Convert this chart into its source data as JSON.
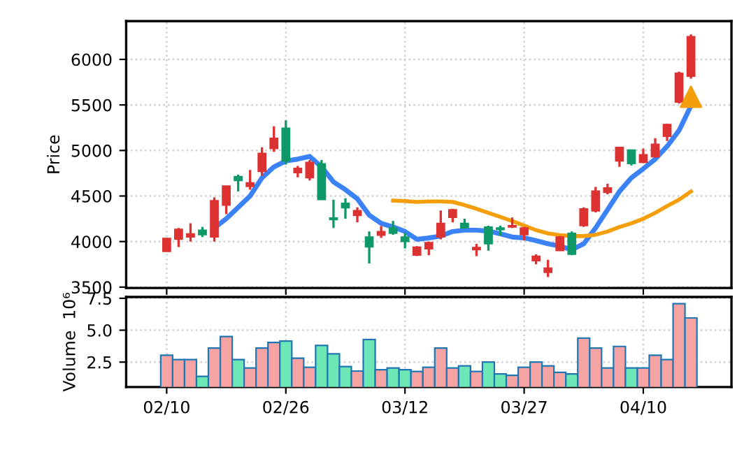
{
  "chart_data": [
    {
      "type": "candlestick",
      "ylabel": "Price",
      "tick_labels": "y",
      "grid": true,
      "categories": [
        null,
        null,
        null,
        null,
        null,
        null,
        null,
        null,
        null,
        null,
        null,
        null,
        null,
        null,
        null,
        null,
        null,
        null,
        null,
        null,
        null,
        null,
        null,
        null,
        null,
        null,
        null,
        null,
        null,
        null,
        null,
        null,
        null,
        null,
        null,
        null,
        null,
        null,
        null,
        null,
        null,
        null,
        null,
        null,
        null
      ],
      "ohlc": [
        [
          3890,
          4040,
          3890,
          4035
        ],
        [
          4025,
          4150,
          3940,
          4135
        ],
        [
          4050,
          4200,
          4000,
          4085
        ],
        [
          4125,
          4160,
          4050,
          4075
        ],
        [
          4050,
          4485,
          4000,
          4450
        ],
        [
          4400,
          4610,
          4300,
          4610
        ],
        [
          4715,
          4735,
          4550,
          4670
        ],
        [
          4605,
          4785,
          4570,
          4645
        ],
        [
          4770,
          5035,
          4720,
          4970
        ],
        [
          5020,
          5265,
          4985,
          5135
        ],
        [
          5245,
          5330,
          4845,
          4885
        ],
        [
          4755,
          4830,
          4705,
          4805
        ],
        [
          4700,
          4895,
          4670,
          4870
        ],
        [
          4855,
          4895,
          4460,
          4460
        ],
        [
          4260,
          4460,
          4150,
          4240
        ],
        [
          4420,
          4475,
          4250,
          4370
        ],
        [
          4285,
          4375,
          4210,
          4340
        ],
        [
          4050,
          4110,
          3760,
          3940
        ],
        [
          4070,
          4170,
          4040,
          4110
        ],
        [
          4150,
          4225,
          4075,
          4090
        ],
        [
          4050,
          4100,
          3925,
          4000
        ],
        [
          3850,
          3950,
          3840,
          3940
        ],
        [
          3920,
          4000,
          3850,
          3990
        ],
        [
          4050,
          4340,
          4025,
          4200
        ],
        [
          4265,
          4360,
          4210,
          4350
        ],
        [
          4200,
          4250,
          4140,
          4150
        ],
        [
          3910,
          3975,
          3840,
          3935
        ],
        [
          4160,
          4175,
          3900,
          3975
        ],
        [
          4150,
          4175,
          4065,
          4130
        ],
        [
          4160,
          4265,
          4150,
          4175
        ],
        [
          4075,
          4160,
          4015,
          4150
        ],
        [
          3790,
          3860,
          3750,
          3840
        ],
        [
          3660,
          3800,
          3610,
          3710
        ],
        [
          3900,
          4060,
          3900,
          4050
        ],
        [
          4090,
          4110,
          3850,
          3860
        ],
        [
          4175,
          4375,
          4160,
          4360
        ],
        [
          4335,
          4600,
          4320,
          4555
        ],
        [
          4540,
          4635,
          4520,
          4590
        ],
        [
          4885,
          5035,
          4820,
          5035
        ],
        [
          5005,
          5005,
          4835,
          4855
        ],
        [
          4870,
          5020,
          4860,
          4955
        ],
        [
          4930,
          5135,
          4920,
          5070
        ],
        [
          5155,
          5295,
          5105,
          5285
        ],
        [
          5530,
          5865,
          5515,
          5850
        ],
        [
          5815,
          6275,
          5790,
          6250
        ]
      ],
      "colors": [
        "#dc3232",
        "#dc3232",
        "#dc3232",
        "#0f9968",
        "#dc3232",
        "#dc3232",
        "#0f9968",
        "#dc3232",
        "#dc3232",
        "#dc3232",
        "#0f9968",
        "#dc3232",
        "#dc3232",
        "#0f9968",
        "#0f9968",
        "#0f9968",
        "#dc3232",
        "#0f9968",
        "#dc3232",
        "#0f9968",
        "#0f9968",
        "#dc3232",
        "#dc3232",
        "#dc3232",
        "#dc3232",
        "#0f9968",
        "#dc3232",
        "#0f9968",
        "#0f9968",
        "#dc3232",
        "#dc3232",
        "#dc3232",
        "#dc3232",
        "#dc3232",
        "#0f9968",
        "#dc3232",
        "#dc3232",
        "#dc3232",
        "#dc3232",
        "#0f9968",
        "#dc3232",
        "#dc3232",
        "#dc3232",
        "#dc3232",
        "#dc3232"
      ],
      "series": [
        {
          "type": "line",
          "color": "#3b82f6",
          "values": [
            null,
            null,
            null,
            null,
            4150,
            4250,
            4375,
            4500,
            4700,
            4820,
            4885,
            4905,
            4935,
            4820,
            4655,
            4570,
            4470,
            4290,
            4200,
            4160,
            4110,
            4025,
            4040,
            4060,
            4110,
            4125,
            4125,
            4115,
            4085,
            4050,
            4040,
            4010,
            3975,
            3950,
            3910,
            3975,
            4150,
            4350,
            4550,
            4700,
            4800,
            4905,
            5045,
            5220,
            5490
          ]
        },
        {
          "type": "line",
          "color": "#f59e0b",
          "values": [
            null,
            null,
            null,
            null,
            null,
            null,
            null,
            null,
            null,
            null,
            null,
            null,
            null,
            null,
            null,
            null,
            null,
            null,
            null,
            4450,
            4445,
            4435,
            4440,
            4440,
            4435,
            4400,
            4360,
            4315,
            4270,
            4225,
            4175,
            4125,
            4090,
            4070,
            4060,
            4060,
            4075,
            4110,
            4160,
            4200,
            4250,
            4315,
            4390,
            4460,
            4550
          ]
        },
        {
          "type": "scatter",
          "marker": "triangle",
          "color": "#f59e0b",
          "values": [
            null,
            null,
            null,
            null,
            null,
            null,
            null,
            null,
            null,
            null,
            null,
            null,
            null,
            null,
            null,
            null,
            null,
            null,
            null,
            null,
            null,
            null,
            null,
            null,
            null,
            null,
            null,
            null,
            null,
            null,
            null,
            null,
            null,
            null,
            null,
            null,
            null,
            null,
            null,
            null,
            null,
            null,
            null,
            null,
            5590
          ]
        }
      ],
      "ylim": [
        3490,
        6420
      ],
      "yticks": [
        3500,
        4000,
        4500,
        5000,
        5500,
        6000
      ]
    },
    {
      "type": "bar",
      "ylabel": "Volume  10⁶",
      "grid": true,
      "categories": [
        "02/10",
        null,
        null,
        null,
        null,
        null,
        null,
        null,
        null,
        null,
        "02/26",
        null,
        null,
        null,
        null,
        null,
        null,
        null,
        null,
        null,
        "03/12",
        null,
        null,
        null,
        null,
        null,
        null,
        null,
        null,
        null,
        "03/27",
        null,
        null,
        null,
        null,
        null,
        null,
        null,
        null,
        null,
        "04/10",
        null,
        null,
        null,
        null
      ],
      "values": [
        3.04,
        2.7,
        2.7,
        1.38,
        3.6,
        4.5,
        2.7,
        2.04,
        3.6,
        4.04,
        4.15,
        2.8,
        2.1,
        3.8,
        3.15,
        2.15,
        1.8,
        4.27,
        1.9,
        2.04,
        1.9,
        1.77,
        2.1,
        3.6,
        2.04,
        2.2,
        1.77,
        2.5,
        1.58,
        1.46,
        2.1,
        2.5,
        2.2,
        1.7,
        1.58,
        4.38,
        3.6,
        2.04,
        3.73,
        2.04,
        2.04,
        3.04,
        2.7,
        7.08,
        5.96
      ],
      "colors": [
        "#f5a3a3",
        "#f5a3a3",
        "#f5a3a3",
        "#6ee7b7",
        "#f5a3a3",
        "#f5a3a3",
        "#6ee7b7",
        "#f5a3a3",
        "#f5a3a3",
        "#f5a3a3",
        "#6ee7b7",
        "#f5a3a3",
        "#f5a3a3",
        "#6ee7b7",
        "#6ee7b7",
        "#6ee7b7",
        "#f5a3a3",
        "#6ee7b7",
        "#f5a3a3",
        "#6ee7b7",
        "#6ee7b7",
        "#f5a3a3",
        "#f5a3a3",
        "#f5a3a3",
        "#f5a3a3",
        "#6ee7b7",
        "#f5a3a3",
        "#6ee7b7",
        "#6ee7b7",
        "#f5a3a3",
        "#f5a3a3",
        "#f5a3a3",
        "#f5a3a3",
        "#f5a3a3",
        "#6ee7b7",
        "#f5a3a3",
        "#f5a3a3",
        "#f5a3a3",
        "#f5a3a3",
        "#6ee7b7",
        "#f5a3a3",
        "#f5a3a3",
        "#f5a3a3",
        "#f5a3a3",
        "#f5a3a3"
      ],
      "ylim": [
        0.55,
        7.6
      ],
      "yticks": [
        {
          "value": 2.5,
          "label": "2.5"
        },
        {
          "value": 5.0,
          "label": "5.0"
        },
        {
          "value": 7.5,
          "label": "7.5"
        }
      ]
    }
  ]
}
